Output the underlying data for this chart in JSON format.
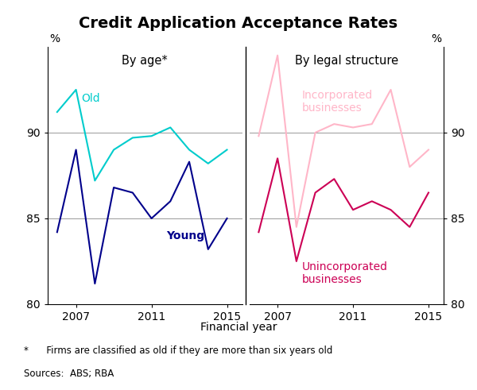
{
  "title": "Credit Application Acceptance Rates",
  "subtitle_left": "By age*",
  "subtitle_right": "By legal structure",
  "xlabel": "Financial year",
  "ylabel_left": "%",
  "ylabel_right": "%",
  "ylim": [
    80,
    95
  ],
  "yticks": [
    80,
    85,
    90
  ],
  "footnote1": "*      Firms are classified as old if they are more than six years old",
  "footnote2": "Sources:  ABS; RBA",
  "left_panel": {
    "old": {
      "years": [
        2006,
        2007,
        2008,
        2009,
        2010,
        2011,
        2012,
        2013,
        2014,
        2015
      ],
      "values": [
        91.2,
        92.5,
        87.2,
        89.0,
        89.7,
        89.8,
        90.3,
        89.0,
        88.2,
        89.0
      ],
      "color": "#00CCCC",
      "label": "Old"
    },
    "young": {
      "years": [
        2006,
        2007,
        2008,
        2009,
        2010,
        2011,
        2012,
        2013,
        2014,
        2015
      ],
      "values": [
        84.2,
        89.0,
        81.2,
        86.8,
        86.5,
        85.0,
        86.0,
        88.3,
        83.2,
        85.0
      ],
      "color": "#00008B",
      "label": "Young"
    }
  },
  "right_panel": {
    "incorporated": {
      "years": [
        2006,
        2007,
        2008,
        2009,
        2010,
        2011,
        2012,
        2013,
        2014,
        2015
      ],
      "values": [
        89.8,
        94.5,
        84.5,
        90.0,
        90.5,
        90.3,
        90.5,
        92.5,
        88.0,
        89.0
      ],
      "color": "#FFB6C8",
      "label": "Incorporated\nbusinesses"
    },
    "unincorporated": {
      "years": [
        2006,
        2007,
        2008,
        2009,
        2010,
        2011,
        2012,
        2013,
        2014,
        2015
      ],
      "values": [
        84.2,
        88.5,
        82.5,
        86.5,
        87.3,
        85.5,
        86.0,
        85.5,
        84.5,
        86.5
      ],
      "color": "#CC0055",
      "label": "Unincorporated\nbusinesses"
    }
  },
  "grid_color": "#999999",
  "grid_linewidth": 0.7,
  "background_color": "#ffffff",
  "title_fontsize": 14,
  "subtitle_fontsize": 10.5,
  "label_fontsize": 10,
  "tick_fontsize": 10,
  "annotation_fontsize": 10
}
